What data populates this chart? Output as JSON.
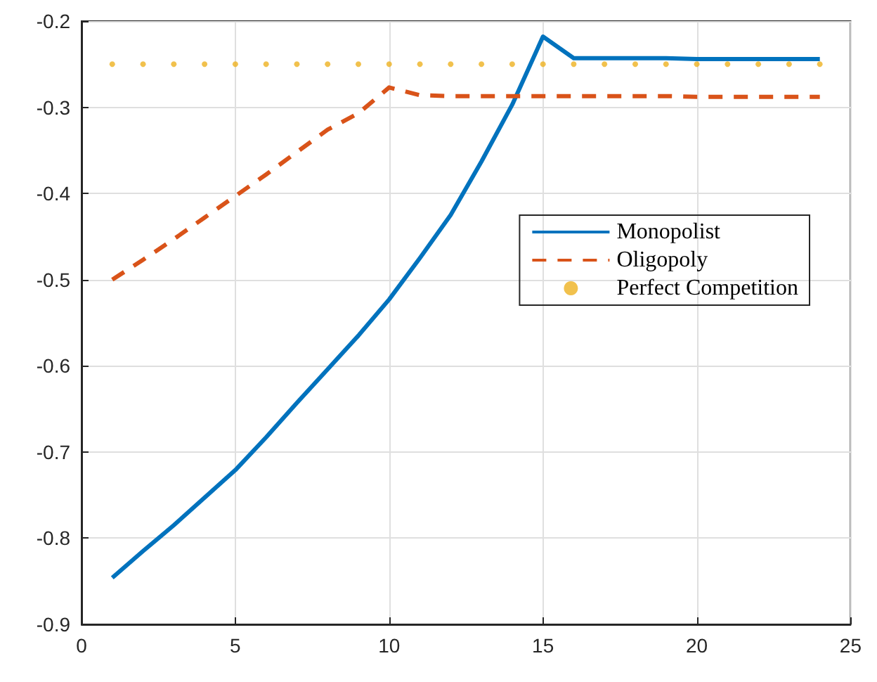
{
  "chart_data": {
    "type": "line",
    "x": [
      1,
      2,
      3,
      4,
      5,
      6,
      7,
      8,
      9,
      10,
      11,
      12,
      13,
      14,
      15,
      16,
      17,
      18,
      19,
      20,
      21,
      22,
      23,
      24
    ],
    "series": [
      {
        "name": "Monopolist",
        "color": "#0072bd",
        "line_style": "solid",
        "values": [
          -0.846,
          -0.815,
          -0.785,
          -0.753,
          -0.721,
          -0.683,
          -0.643,
          -0.604,
          -0.565,
          -0.523,
          -0.475,
          -0.425,
          -0.363,
          -0.297,
          -0.218,
          -0.243,
          -0.243,
          -0.243,
          -0.243,
          -0.244,
          -0.244,
          -0.244,
          -0.244,
          -0.244
        ]
      },
      {
        "name": "Oligopoly",
        "color": "#d95319",
        "line_style": "dashed",
        "values": [
          -0.5,
          -0.477,
          -0.453,
          -0.428,
          -0.403,
          -0.378,
          -0.352,
          -0.326,
          -0.307,
          -0.277,
          -0.286,
          -0.287,
          -0.287,
          -0.287,
          -0.287,
          -0.287,
          -0.287,
          -0.287,
          -0.287,
          -0.288,
          -0.288,
          -0.288,
          -0.288,
          -0.288
        ]
      },
      {
        "name": "Perfect Competition",
        "type": "scatter",
        "color": "#edb120",
        "marker": "circle",
        "values": [
          -0.25,
          -0.25,
          -0.25,
          -0.25,
          -0.25,
          -0.25,
          -0.25,
          -0.25,
          -0.25,
          -0.25,
          -0.25,
          -0.25,
          -0.25,
          -0.25,
          -0.25,
          -0.25,
          -0.25,
          -0.25,
          -0.25,
          -0.25,
          -0.25,
          -0.25,
          -0.25,
          -0.25
        ]
      }
    ],
    "xlim": [
      0,
      25
    ],
    "xticks": [
      0,
      5,
      10,
      15,
      20,
      25
    ],
    "ylim": [
      -0.9,
      -0.2
    ],
    "yticks": [
      -0.9,
      -0.8,
      -0.7,
      -0.6,
      -0.5,
      -0.4,
      -0.3,
      -0.2
    ],
    "grid": true,
    "legend": "right",
    "marker": "none"
  }
}
